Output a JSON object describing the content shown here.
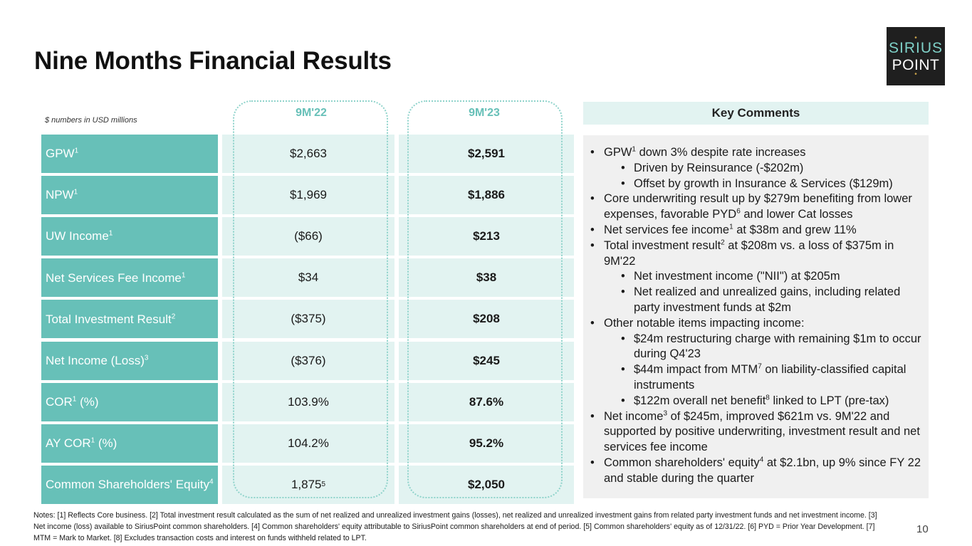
{
  "title": "Nine Months Financial Results",
  "logo": {
    "line1": "SIRIUS",
    "line2": "POINT"
  },
  "table": {
    "units_note": "$ numbers in USD millions",
    "columns": [
      "9M'22",
      "9M'23"
    ],
    "rows": [
      {
        "label": "GPW",
        "sup": "1",
        "v1": "$2,663",
        "v1_sup": "",
        "v2": "$2,591"
      },
      {
        "label": "NPW",
        "sup": "1",
        "v1": "$1,969",
        "v1_sup": "",
        "v2": "$1,886"
      },
      {
        "label": "UW Income",
        "sup": "1",
        "v1": "($66)",
        "v1_sup": "",
        "v2": "$213"
      },
      {
        "label": "Net Services Fee Income",
        "sup": "1",
        "v1": "$34",
        "v1_sup": "",
        "v2": "$38"
      },
      {
        "label": "Total Investment Result",
        "sup": "2",
        "v1": "($375)",
        "v1_sup": "",
        "v2": "$208"
      },
      {
        "label": "Net Income (Loss)",
        "sup": "3",
        "v1": "($376)",
        "v1_sup": "",
        "v2": "$245"
      },
      {
        "label": "COR",
        "sup": "1",
        "label_after": " (%)",
        "v1": "103.9%",
        "v1_sup": "",
        "v2": "87.6%"
      },
      {
        "label": "AY COR",
        "sup": "1",
        "label_after": " (%)",
        "v1": "104.2%",
        "v1_sup": "",
        "v2": "95.2%"
      },
      {
        "label": "Common Shareholders' Equity",
        "sup": "4",
        "v1": "1,875",
        "v1_sup": "5",
        "v2": "$2,050"
      }
    ]
  },
  "key_comments": {
    "heading": "Key Comments",
    "items": [
      {
        "level": 1,
        "segments": [
          {
            "t": "GPW"
          },
          {
            "t": "1",
            "sup": true
          },
          {
            "t": " down 3% despite rate increases"
          }
        ]
      },
      {
        "level": 2,
        "segments": [
          {
            "t": "Driven by Reinsurance (-$202m)"
          }
        ]
      },
      {
        "level": 2,
        "segments": [
          {
            "t": "Offset by growth in Insurance & Services ($129m)"
          }
        ]
      },
      {
        "level": 1,
        "segments": [
          {
            "t": "Core underwriting result up by $279m benefiting from lower expenses, favorable PYD"
          },
          {
            "t": "6",
            "sup": true
          },
          {
            "t": " and lower Cat losses"
          }
        ]
      },
      {
        "level": 1,
        "segments": [
          {
            "t": "Net services fee income"
          },
          {
            "t": "1",
            "sup": true
          },
          {
            "t": " at $38m and grew 11%"
          }
        ]
      },
      {
        "level": 1,
        "segments": [
          {
            "t": "Total investment result"
          },
          {
            "t": "2",
            "sup": true
          },
          {
            "t": " at $208m vs. a loss of $375m in 9M'22"
          }
        ]
      },
      {
        "level": 2,
        "segments": [
          {
            "t": "Net investment income (\"NII\") at $205m"
          }
        ]
      },
      {
        "level": 2,
        "segments": [
          {
            "t": "Net realized and unrealized gains, including related party investment funds at $2m"
          }
        ]
      },
      {
        "level": 1,
        "segments": [
          {
            "t": "Other notable items impacting income:"
          }
        ]
      },
      {
        "level": 2,
        "segments": [
          {
            "t": "$24m restructuring charge with remaining $1m to occur during Q4'23"
          }
        ]
      },
      {
        "level": 2,
        "segments": [
          {
            "t": "$44m impact from MTM"
          },
          {
            "t": "7",
            "sup": true
          },
          {
            "t": " on liability-classified capital instruments"
          }
        ]
      },
      {
        "level": 2,
        "segments": [
          {
            "t": "$122m overall net benefit"
          },
          {
            "t": "8",
            "sup": true
          },
          {
            "t": " linked to LPT (pre-tax)"
          }
        ]
      },
      {
        "level": 1,
        "segments": [
          {
            "t": "Net income"
          },
          {
            "t": "3",
            "sup": true
          },
          {
            "t": " of $245m, improved $621m vs. 9M'22 and supported by positive underwriting, investment result and net services fee income"
          }
        ]
      },
      {
        "level": 1,
        "segments": [
          {
            "t": "Common shareholders' equity"
          },
          {
            "t": "4",
            "sup": true
          },
          {
            "t": " at $2.1bn, up 9% since FY 22 and stable during the quarter"
          }
        ]
      }
    ]
  },
  "notes": "Notes: [1] Reflects Core business. [2] Total investment result calculated as the sum of net realized and unrealized investment gains (losses), net realized and unrealized investment gains from related party investment funds and net investment income. [3] Net income (loss) available to SiriusPoint common shareholders. [4] Common shareholders' equity attributable to SiriusPoint common shareholders at end of period. [5] Common shareholders' equity as of 12/31/22. [6] PYD = Prior Year Development. [7] MTM = Mark to Market. [8] Excludes transaction costs and interest on funds withheld related to LPT.",
  "page_number": "10",
  "colors": {
    "teal": "#67c0b8",
    "light_teal": "#e2f3f1",
    "panel_gray": "#f0f0f0"
  }
}
